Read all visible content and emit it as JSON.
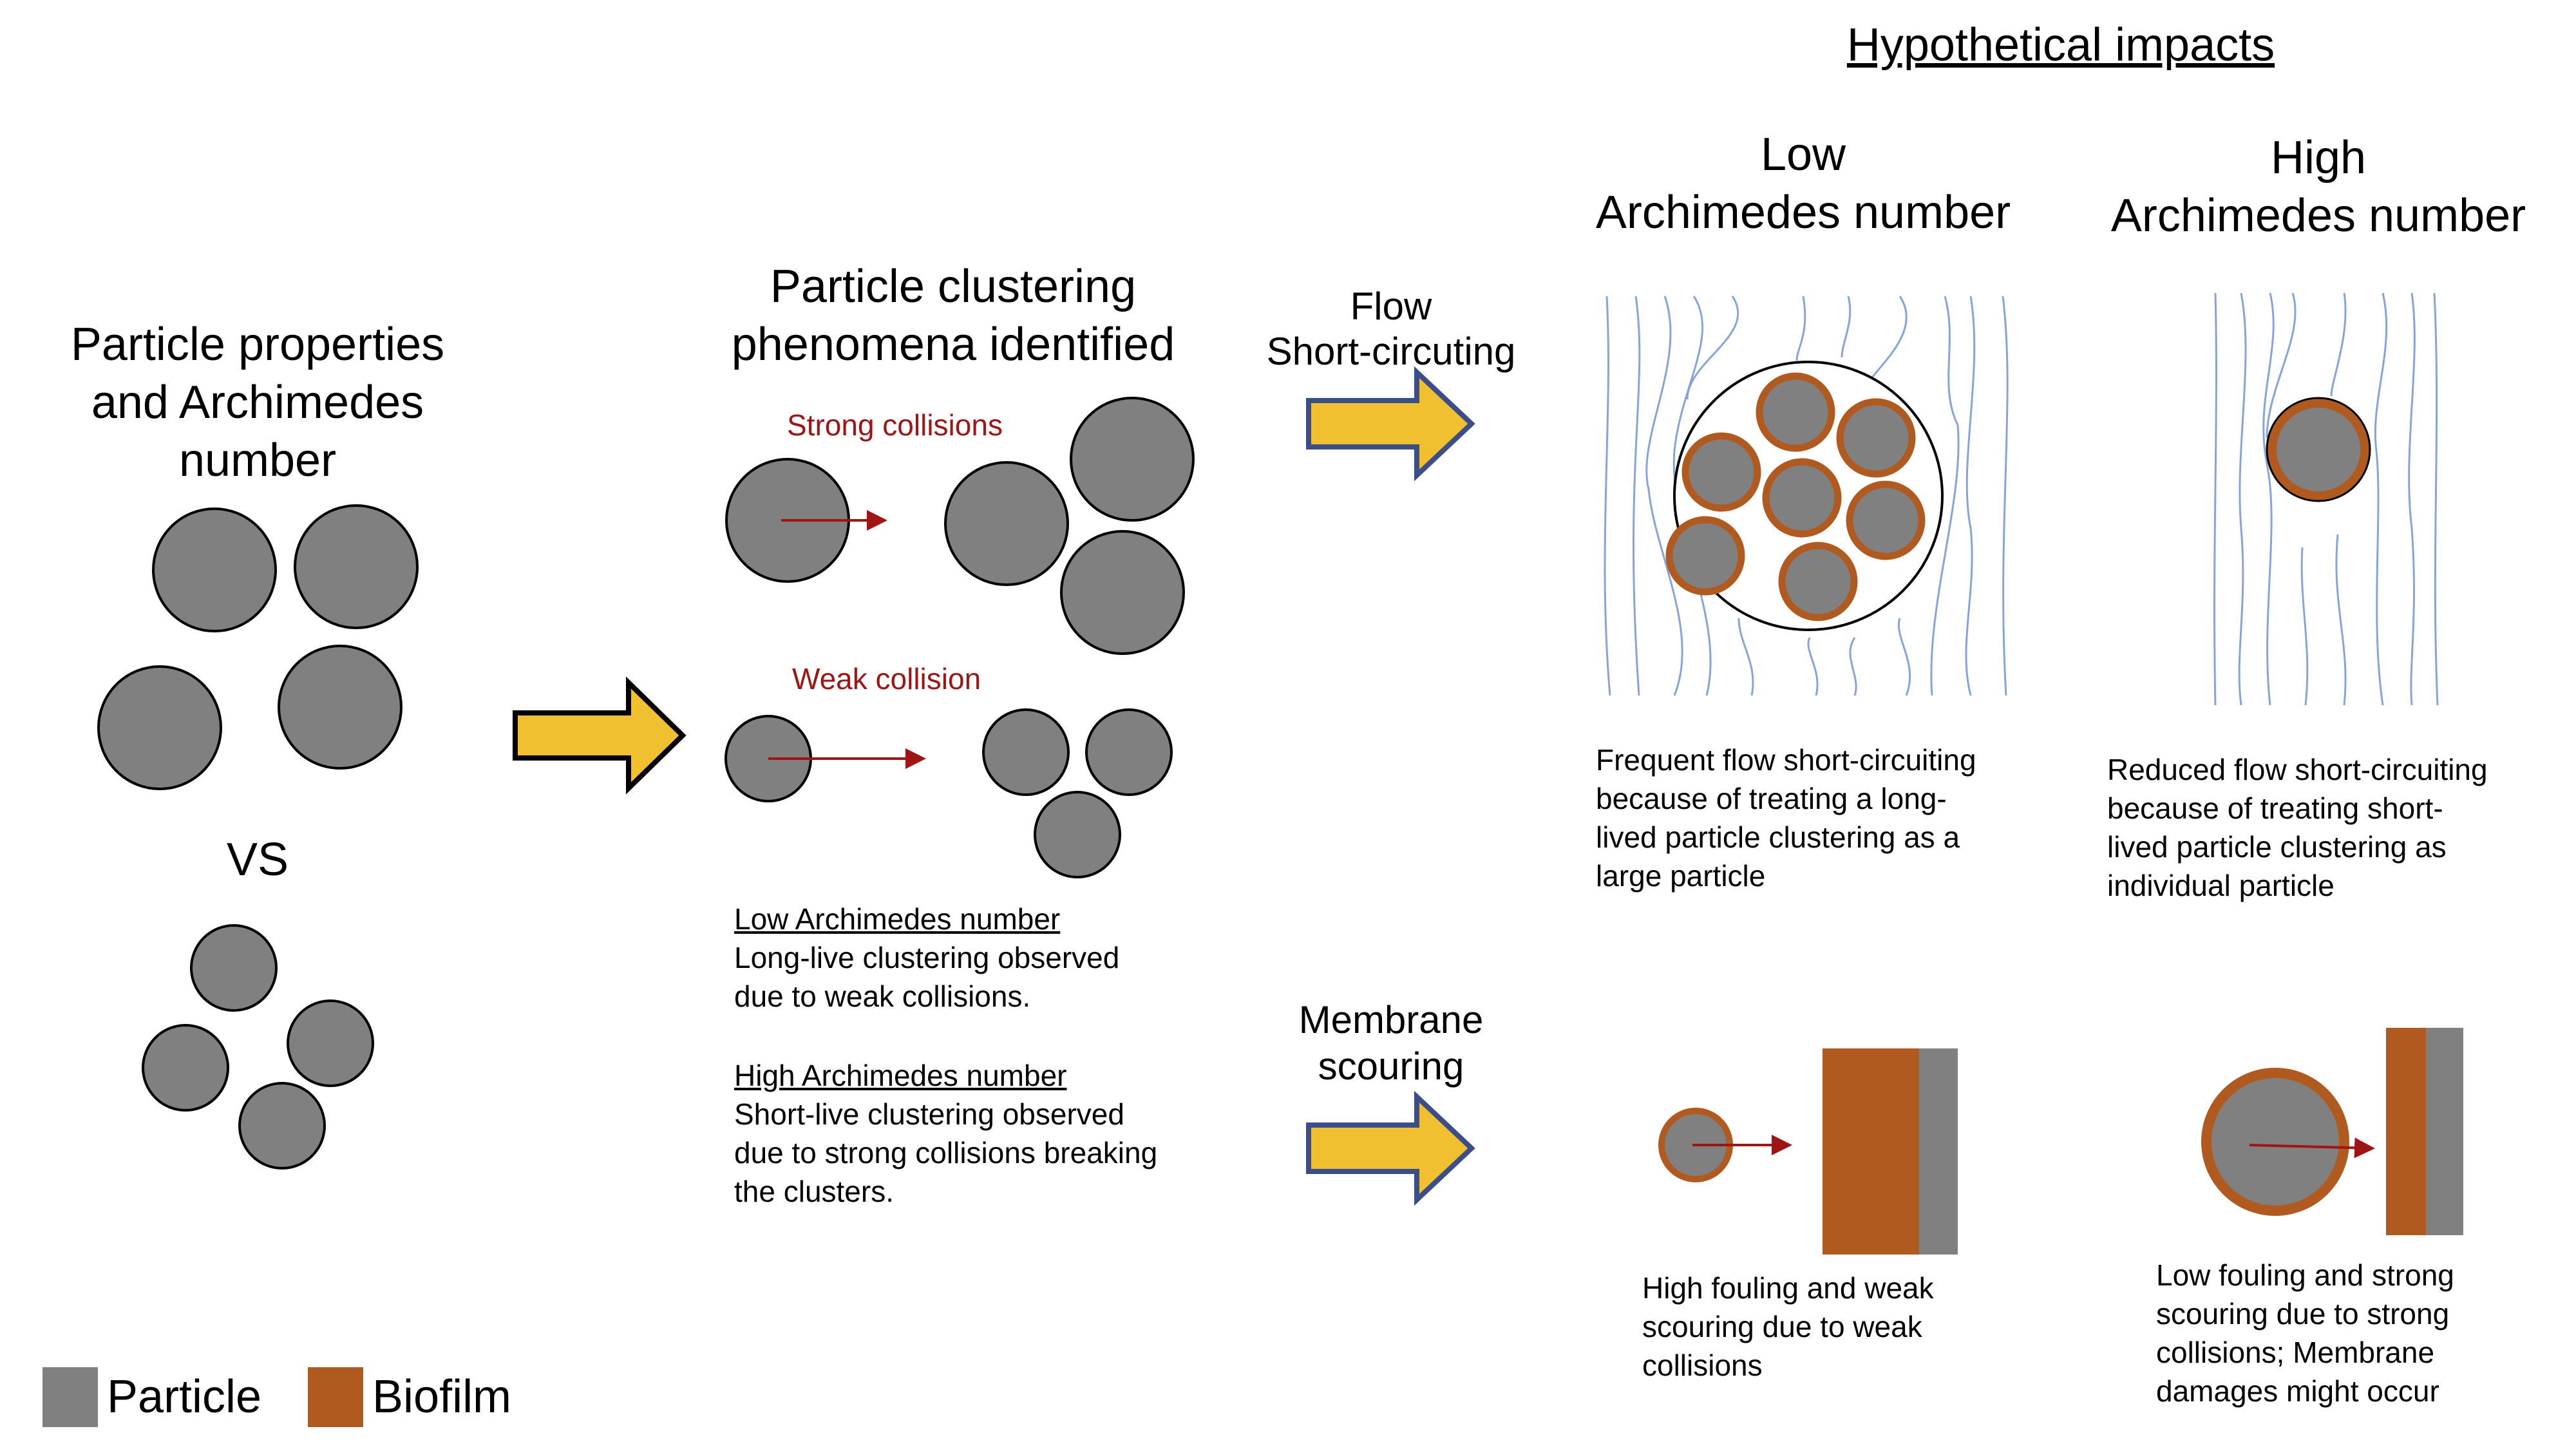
{
  "header": {
    "title": "Hypothetical impacts"
  },
  "columns": {
    "low": {
      "line1": "Low",
      "line2": "Archimedes number"
    },
    "high": {
      "line1": "High",
      "line2": "Archimedes number"
    }
  },
  "left": {
    "title_lines": [
      "Particle properties",
      "and Archimedes",
      "number"
    ],
    "vs": "VS"
  },
  "middle": {
    "title_lines": [
      "Particle clustering",
      "phenomena identified"
    ],
    "strong_label": "Strong collisions",
    "weak_label": "Weak collision",
    "low_heading": "Low Archimedes number",
    "low_text_lines": [
      "Long-live clustering observed",
      "due to weak collisions."
    ],
    "high_heading": "High Archimedes number",
    "high_text_lines": [
      "Short-live clustering observed",
      "due to strong collisions breaking",
      "the clusters."
    ]
  },
  "arrows": {
    "flow_lines": [
      "Flow",
      "Short-circuting"
    ],
    "membrane_lines": [
      "Membrane",
      "scouring"
    ]
  },
  "captions": {
    "low_flow": [
      "Frequent flow short-circuiting",
      "because of treating a long-",
      "lived particle clustering as a",
      "large particle"
    ],
    "high_flow": [
      "Reduced flow short-circuiting",
      "because of treating short-",
      "lived particle clustering as",
      "individual particle"
    ],
    "low_membrane": [
      "High fouling and weak",
      "scouring due to weak",
      "collisions"
    ],
    "high_membrane": [
      "Low fouling and strong",
      "scouring due to strong",
      "collisions; Membrane",
      "damages might occur"
    ]
  },
  "legend": {
    "particle_label": "Particle",
    "biofilm_label": "Biofilm"
  },
  "colors": {
    "particle": "#808080",
    "biofilm": "#b05a20",
    "arrow_fill": "#f0c030",
    "arrow_stroke": "#3a4f8a",
    "collision_arrow": "#a01414",
    "streamline": "#7b9bd6"
  }
}
